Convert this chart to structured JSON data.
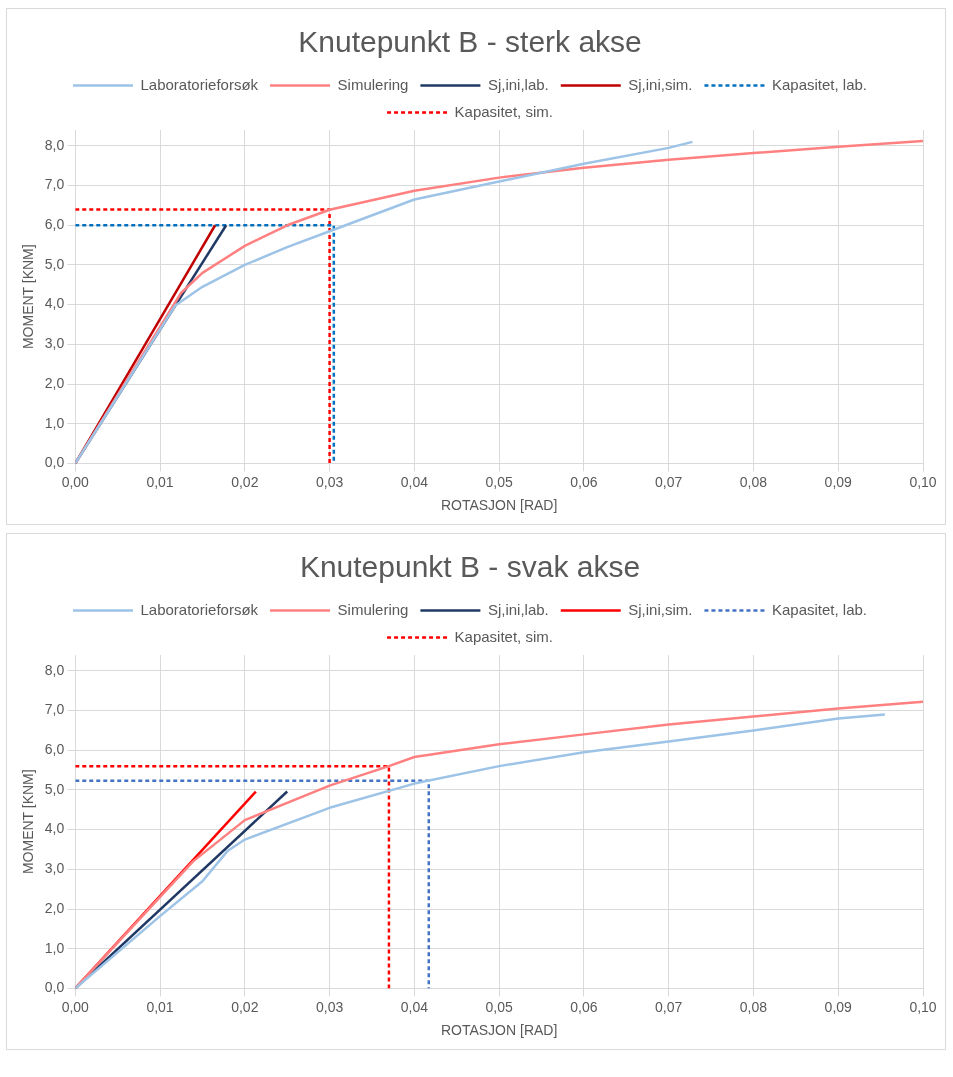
{
  "chart_data": [
    {
      "type": "line",
      "title": "Knutepunkt B - sterk akse",
      "xlabel": "ROTASJON [RAD]",
      "ylabel": "MOMENT [KNM]",
      "legend": "top",
      "grid": true,
      "marker": "none",
      "xlim": [
        0,
        0.1
      ],
      "ylim": [
        0,
        8.4
      ],
      "xticks": [
        {
          "value": 0,
          "label": "0,00"
        },
        {
          "value": 0.01,
          "label": "0,01"
        },
        {
          "value": 0.02,
          "label": "0,02"
        },
        {
          "value": 0.03,
          "label": "0,03"
        },
        {
          "value": 0.04,
          "label": "0,04"
        },
        {
          "value": 0.05,
          "label": "0,05"
        },
        {
          "value": 0.06,
          "label": "0,06"
        },
        {
          "value": 0.07,
          "label": "0,07"
        },
        {
          "value": 0.08,
          "label": "0,08"
        },
        {
          "value": 0.09,
          "label": "0,09"
        },
        {
          "value": 0.1,
          "label": "0,10"
        }
      ],
      "yticks": [
        {
          "value": 0,
          "label": "0,0"
        },
        {
          "value": 1,
          "label": "1,0"
        },
        {
          "value": 2,
          "label": "2,0"
        },
        {
          "value": 3,
          "label": "3,0"
        },
        {
          "value": 4,
          "label": "4,0"
        },
        {
          "value": 5,
          "label": "5,0"
        },
        {
          "value": 6,
          "label": "6,0"
        },
        {
          "value": 7,
          "label": "7,0"
        },
        {
          "value": 8,
          "label": "8,0"
        }
      ],
      "series": [
        {
          "name": "Laboratorieforsøk",
          "color": "#9dc3e6",
          "line_style": "solid",
          "x": [
            0,
            0.0118,
            0.015,
            0.02,
            0.025,
            0.03,
            0.04,
            0.05,
            0.06,
            0.07,
            0.0728
          ],
          "values": [
            0,
            3.98,
            4.45,
            5.0,
            5.45,
            5.85,
            6.65,
            7.1,
            7.55,
            7.95,
            8.1
          ]
        },
        {
          "name": "Simulering",
          "color": "#ff8080",
          "line_style": "solid",
          "x": [
            0,
            0.0125,
            0.015,
            0.02,
            0.025,
            0.03,
            0.04,
            0.05,
            0.06,
            0.07,
            0.08,
            0.09,
            0.1
          ],
          "values": [
            0,
            4.3,
            4.8,
            5.48,
            6.0,
            6.39,
            6.87,
            7.2,
            7.45,
            7.65,
            7.82,
            7.98,
            8.12
          ]
        },
        {
          "name": "Sj,ini,lab.",
          "color": "#1f3864",
          "line_style": "solid",
          "x": [
            0,
            0.0178
          ],
          "values": [
            0,
            6.0
          ]
        },
        {
          "name": "Sj,ini,sim.",
          "color": "#c00000",
          "line_style": "solid",
          "x": [
            0,
            0.0165
          ],
          "values": [
            0,
            6.0
          ]
        },
        {
          "name": "Kapasitet, lab.",
          "color": "#0070c0",
          "line_style": "dashed",
          "x": [
            0,
            0.0305,
            0.0305
          ],
          "values": [
            6.0,
            6.0,
            0
          ]
        },
        {
          "name": "Kapasitet, sim.",
          "color": "#ff0000",
          "line_style": "dashed",
          "x": [
            0,
            0.03,
            0.03
          ],
          "values": [
            6.4,
            6.4,
            0
          ]
        }
      ]
    },
    {
      "type": "line",
      "title": "Knutepunkt B - svak akse",
      "xlabel": "ROTASJON [RAD]",
      "ylabel": "MOMENT [KNM]",
      "legend": "top",
      "grid": true,
      "marker": "none",
      "xlim": [
        0,
        0.1
      ],
      "ylim": [
        0,
        8.4
      ],
      "xticks": [
        {
          "value": 0,
          "label": "0,00"
        },
        {
          "value": 0.01,
          "label": "0,01"
        },
        {
          "value": 0.02,
          "label": "0,02"
        },
        {
          "value": 0.03,
          "label": "0,03"
        },
        {
          "value": 0.04,
          "label": "0,04"
        },
        {
          "value": 0.05,
          "label": "0,05"
        },
        {
          "value": 0.06,
          "label": "0,06"
        },
        {
          "value": 0.07,
          "label": "0,07"
        },
        {
          "value": 0.08,
          "label": "0,08"
        },
        {
          "value": 0.09,
          "label": "0,09"
        },
        {
          "value": 0.1,
          "label": "0,10"
        }
      ],
      "yticks": [
        {
          "value": 0,
          "label": "0,0"
        },
        {
          "value": 1,
          "label": "1,0"
        },
        {
          "value": 2,
          "label": "2,0"
        },
        {
          "value": 3,
          "label": "3,0"
        },
        {
          "value": 4,
          "label": "4,0"
        },
        {
          "value": 5,
          "label": "5,0"
        },
        {
          "value": 6,
          "label": "6,0"
        },
        {
          "value": 7,
          "label": "7,0"
        },
        {
          "value": 8,
          "label": "8,0"
        }
      ],
      "series": [
        {
          "name": "Laboratorieforsøk",
          "color": "#9dc3e6",
          "line_style": "solid",
          "x": [
            0,
            0.01,
            0.015,
            0.018,
            0.02,
            0.03,
            0.04,
            0.05,
            0.06,
            0.07,
            0.08,
            0.09,
            0.0955
          ],
          "values": [
            0,
            1.82,
            2.7,
            3.47,
            3.75,
            4.55,
            5.16,
            5.6,
            5.95,
            6.22,
            6.5,
            6.8,
            6.9
          ]
        },
        {
          "name": "Simulering",
          "color": "#ff8080",
          "line_style": "solid",
          "x": [
            0,
            0.0139,
            0.02,
            0.03,
            0.037,
            0.04,
            0.05,
            0.06,
            0.07,
            0.08,
            0.09,
            0.1
          ],
          "values": [
            0,
            3.2,
            4.24,
            5.11,
            5.6,
            5.83,
            6.15,
            6.4,
            6.65,
            6.85,
            7.05,
            7.22
          ]
        },
        {
          "name": "Sj,ini,lab.",
          "color": "#1f3864",
          "line_style": "solid",
          "x": [
            0,
            0.025
          ],
          "values": [
            0,
            4.96
          ]
        },
        {
          "name": "Sj,ini,sim.",
          "color": "#ff0000",
          "line_style": "solid",
          "x": [
            0,
            0.0213
          ],
          "values": [
            0,
            4.96
          ]
        },
        {
          "name": "Kapasitet, lab.",
          "color": "#4472c4",
          "line_style": "dashed",
          "x": [
            0,
            0.0417,
            0.0417
          ],
          "values": [
            5.23,
            5.23,
            0
          ]
        },
        {
          "name": "Kapasitet, sim.",
          "color": "#ff0000",
          "line_style": "dashed",
          "x": [
            0,
            0.037,
            0.037
          ],
          "values": [
            5.6,
            5.6,
            0
          ]
        }
      ]
    }
  ]
}
